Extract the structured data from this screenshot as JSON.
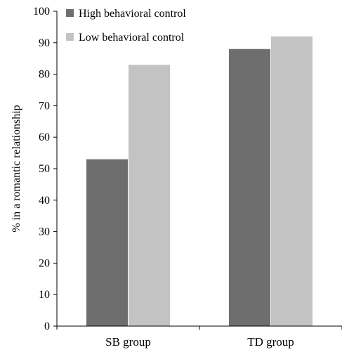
{
  "chart_data": {
    "type": "bar",
    "title": "",
    "xlabel": "",
    "ylabel": "% in a romantic relationship",
    "categories": [
      "SB group",
      "TD group"
    ],
    "series": [
      {
        "name": "High behavioral control",
        "values": [
          53,
          88
        ],
        "color": "#6e6e6e"
      },
      {
        "name": "Low behavioral control",
        "values": [
          83,
          92
        ],
        "color": "#c3c3c3"
      }
    ],
    "ylim": [
      0,
      100
    ],
    "yticks": [
      "0",
      "10",
      "20",
      "30",
      "40",
      "50",
      "60",
      "70",
      "80",
      "90",
      "100"
    ],
    "grid": false,
    "legend_position": "top-left"
  }
}
